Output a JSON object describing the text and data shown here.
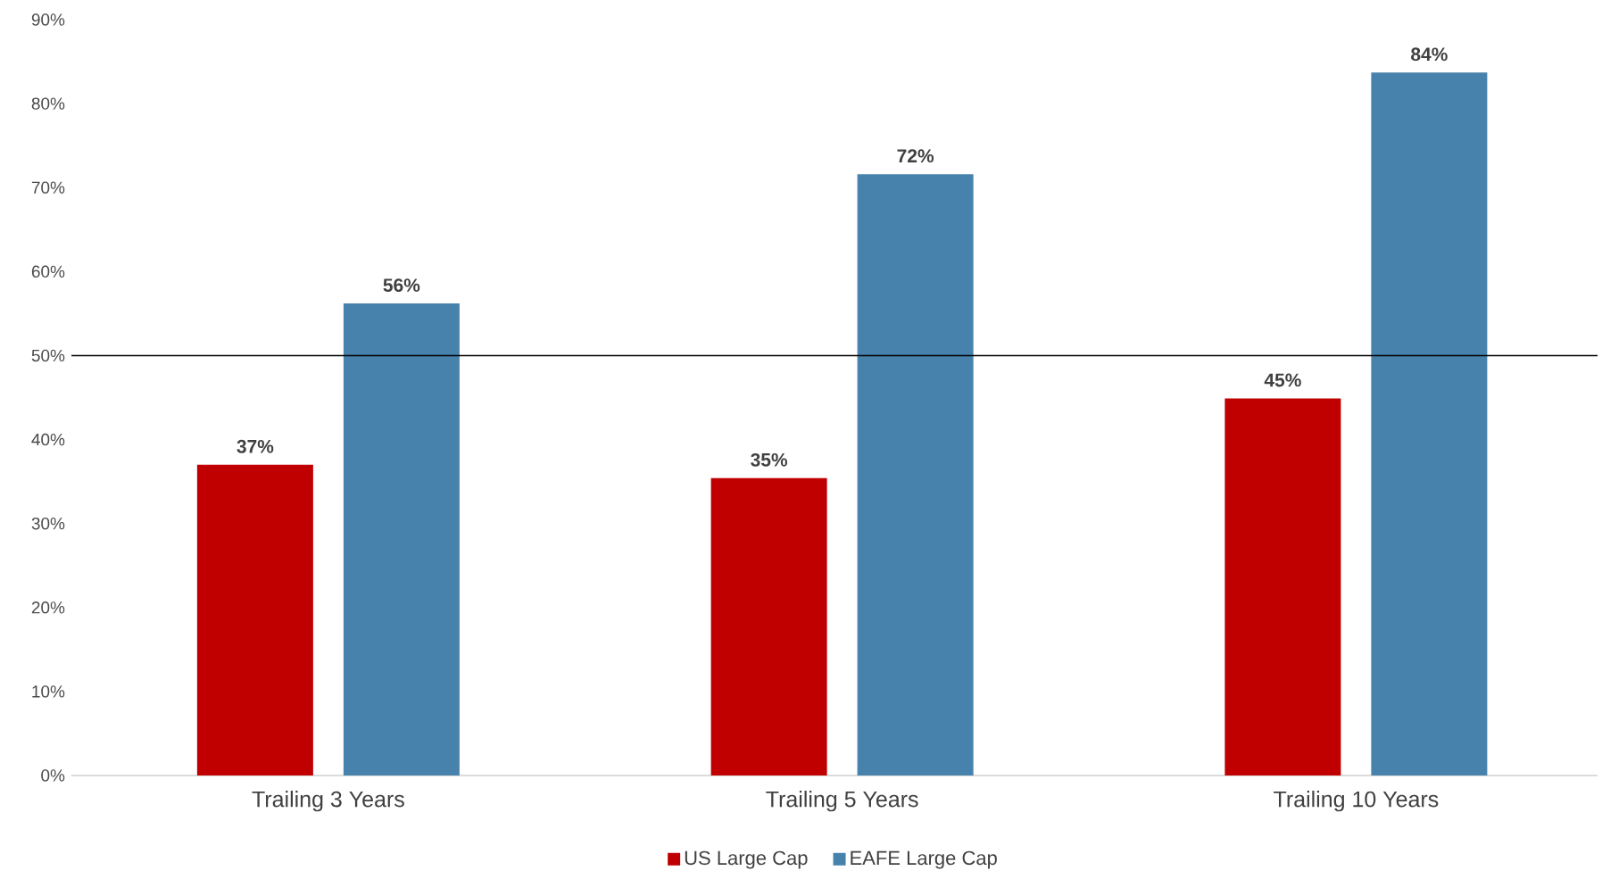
{
  "chart_data": {
    "type": "bar",
    "categories": [
      "Trailing 3 Years",
      "Trailing 5 Years",
      "Trailing 10 Years"
    ],
    "series": [
      {
        "name": "US Large Cap",
        "color": "#c00000",
        "values": [
          37,
          35.4,
          44.9
        ],
        "value_labels": [
          "37%",
          "35%",
          "45%"
        ]
      },
      {
        "name": "EAFE Large Cap",
        "color": "#4682ab",
        "values": [
          56.2,
          71.6,
          83.7
        ],
        "value_labels": [
          "56%",
          "72%",
          "84%"
        ]
      }
    ],
    "ylim": [
      0,
      90
    ],
    "yticks": [
      {
        "value": 0,
        "label": "0%"
      },
      {
        "value": 10,
        "label": "10%"
      },
      {
        "value": 20,
        "label": "20%"
      },
      {
        "value": 30,
        "label": "30%"
      },
      {
        "value": 40,
        "label": "40%"
      },
      {
        "value": 50,
        "label": "50%"
      },
      {
        "value": 60,
        "label": "60%"
      },
      {
        "value": 70,
        "label": "70%"
      },
      {
        "value": 80,
        "label": "80%"
      },
      {
        "value": 90,
        "label": "90%"
      }
    ],
    "ref_lines": [
      {
        "axis": "y",
        "value": 50,
        "color": "#000000"
      }
    ],
    "grid": false,
    "legend": "bottom"
  }
}
